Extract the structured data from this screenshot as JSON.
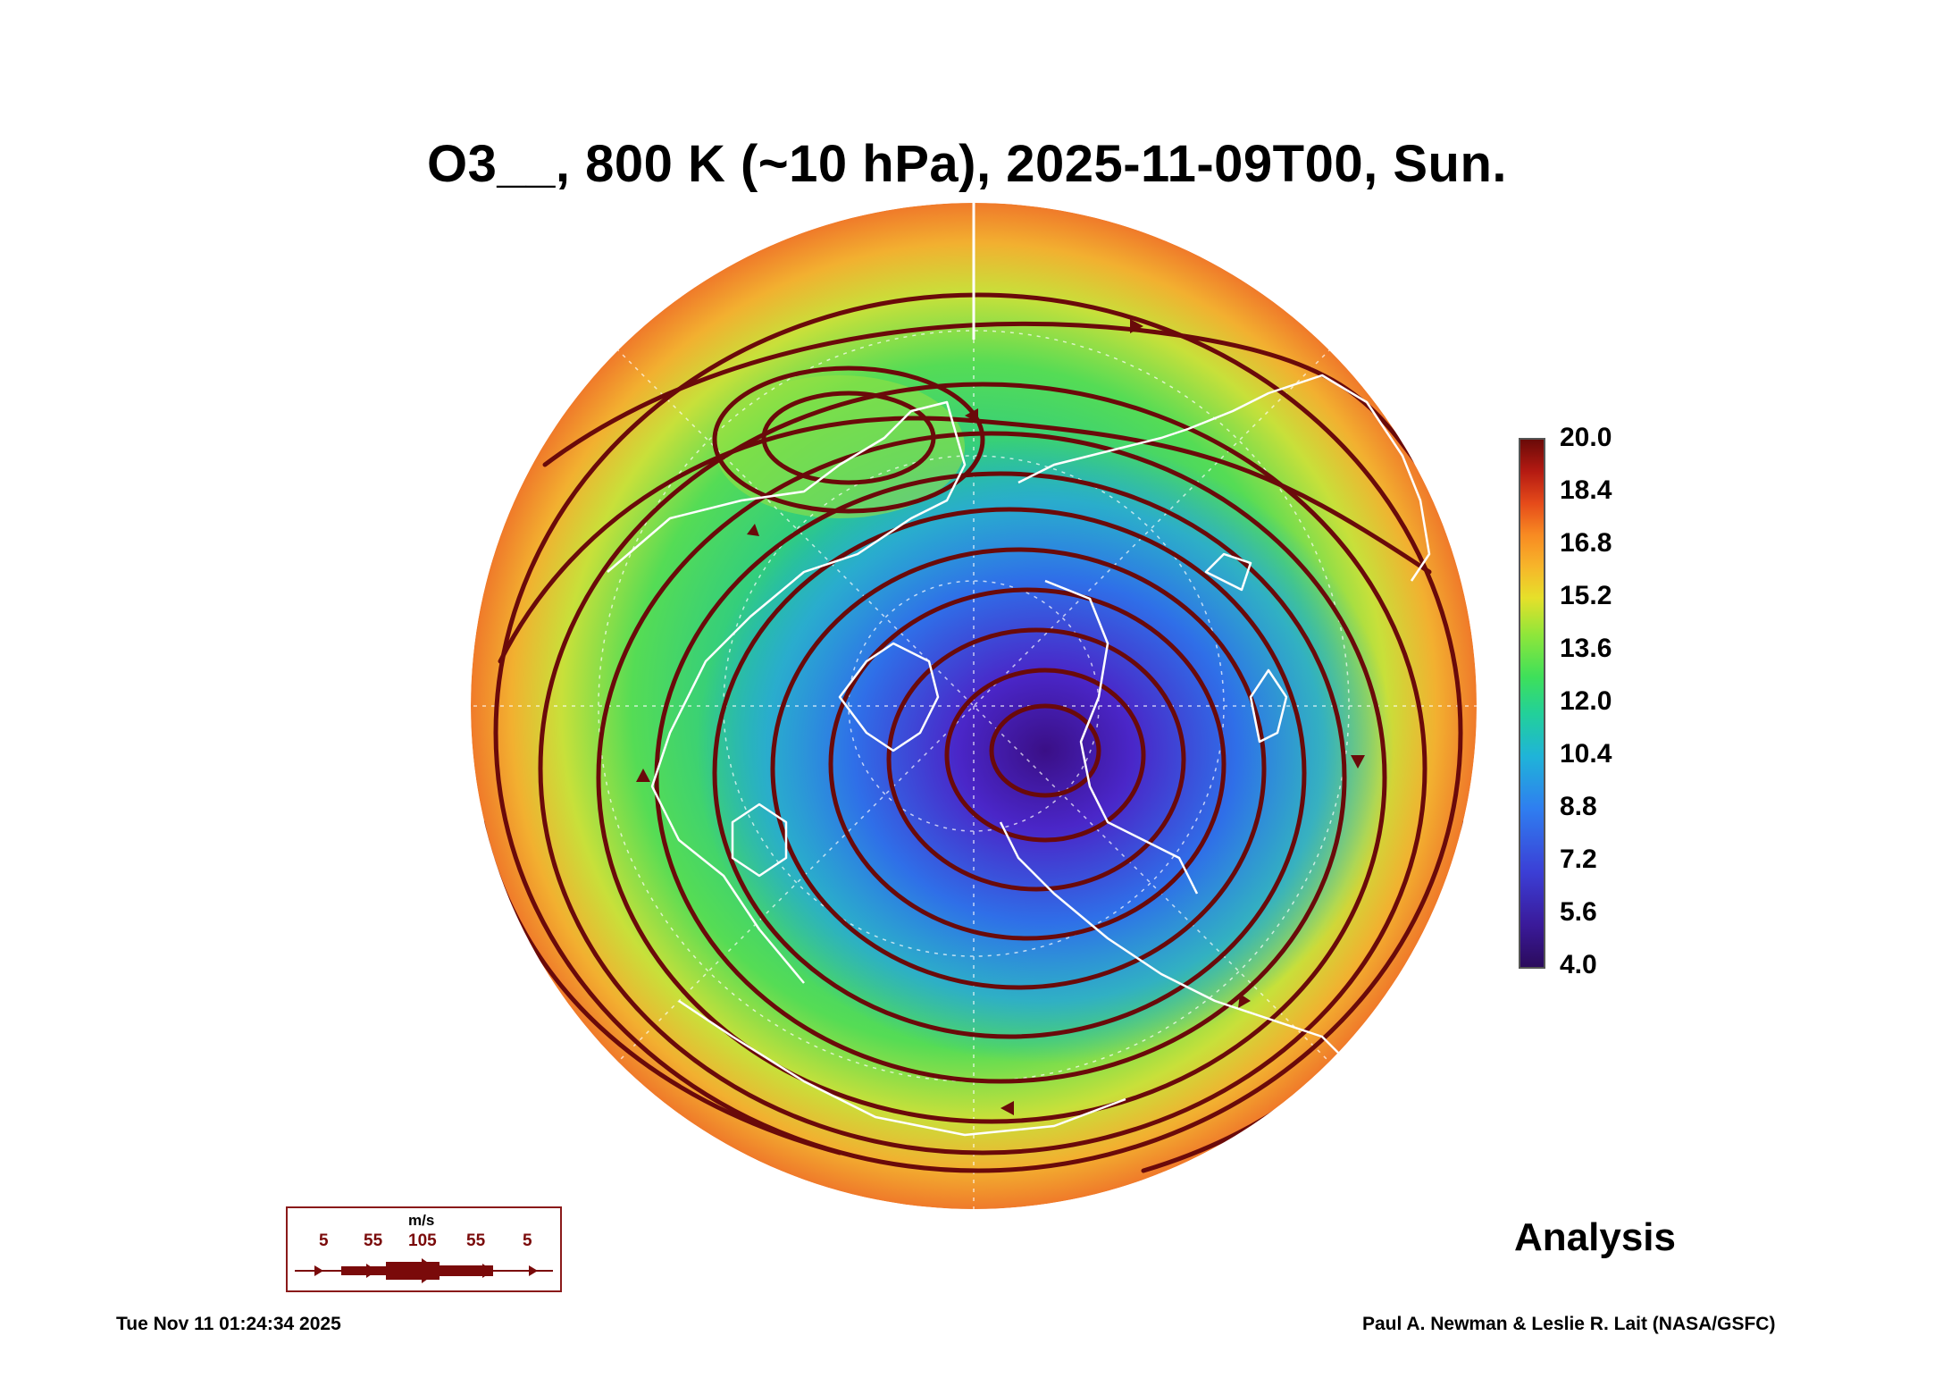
{
  "title": "O3__, 800 K (~10 hPa), 2025-11-09T00, Sun.",
  "colorbar": {
    "min": 4.0,
    "max": 20.0,
    "tick_labels": [
      "20.0",
      "18.4",
      "16.8",
      "15.2",
      "13.6",
      "12.0",
      "10.4",
      "8.8",
      "7.2",
      "5.6",
      "4.0"
    ]
  },
  "wind_legend": {
    "unit": "m/s",
    "values": [
      "5",
      "55",
      "105",
      "55",
      "5"
    ]
  },
  "analysis_label": "Analysis",
  "timestamp": "Tue Nov 11 01:24:34 2025",
  "credit": "Paul A. Newman & Leslie R. Lait (NASA/GSFC)",
  "colors": {
    "streamline": "#6a0a0a",
    "coastline": "#ffffff",
    "low_ozone": "#3a1590",
    "mid_ozone": "#27d08a",
    "high_ozone": "#f08a2a"
  }
}
